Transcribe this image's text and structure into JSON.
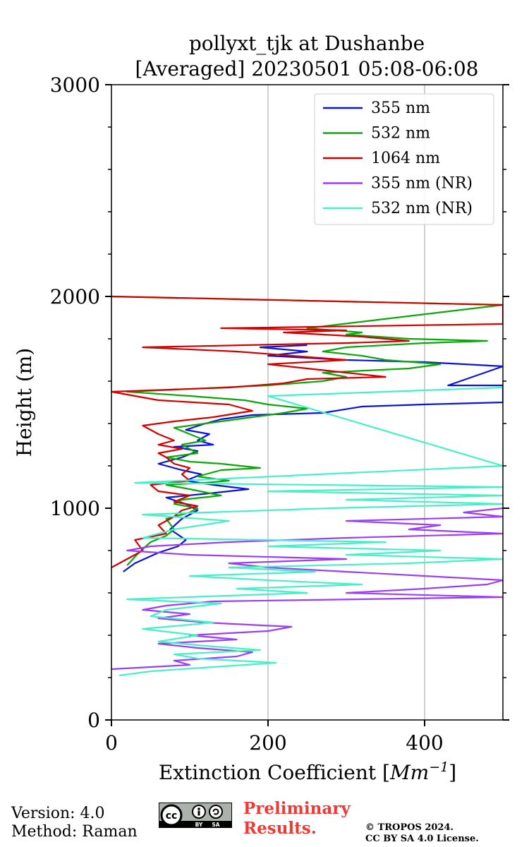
{
  "chart_data": {
    "type": "line",
    "title": "pollyxt_tjk at Dushanbe",
    "subtitle": "[Averaged] 20230501 05:08-06:08",
    "xlabel": "Extinction Coefficient [",
    "xlabel_unit": "Mm",
    "xlabel_exp": "−1",
    "xlabel_end": "]",
    "ylabel": "Height (m)",
    "xlim": [
      0,
      500
    ],
    "ylim": [
      0,
      3000
    ],
    "x_ticks": [
      0,
      200,
      400
    ],
    "y_ticks": [
      0,
      1000,
      2000,
      3000
    ],
    "x_tick_labels": [
      "0",
      "200",
      "400"
    ],
    "y_tick_labels": [
      "0",
      "1000",
      "2000",
      "3000"
    ],
    "grid": "vertical",
    "legend_position": "top-right",
    "series": [
      {
        "name": "355 nm",
        "color": "#0a14d6",
        "points": [
          [
            15,
            700
          ],
          [
            30,
            740
          ],
          [
            60,
            790
          ],
          [
            85,
            820
          ],
          [
            95,
            850
          ],
          [
            75,
            900
          ],
          [
            90,
            950
          ],
          [
            110,
            990
          ],
          [
            95,
            1020
          ],
          [
            70,
            1050
          ],
          [
            125,
            1070
          ],
          [
            175,
            1090
          ],
          [
            130,
            1110
          ],
          [
            95,
            1130
          ],
          [
            115,
            1160
          ],
          [
            90,
            1180
          ],
          [
            60,
            1210
          ],
          [
            90,
            1240
          ],
          [
            110,
            1270
          ],
          [
            80,
            1290
          ],
          [
            130,
            1300
          ],
          [
            110,
            1320
          ],
          [
            125,
            1350
          ],
          [
            95,
            1370
          ],
          [
            120,
            1400
          ],
          [
            140,
            1420
          ],
          [
            180,
            1440
          ],
          [
            270,
            1450
          ],
          [
            320,
            1480
          ],
          [
            400,
            1490
          ],
          [
            500,
            1500
          ],
          [
            500,
            1580
          ],
          [
            430,
            1580
          ],
          [
            500,
            1670
          ],
          [
            400,
            1690
          ],
          [
            300,
            1700
          ],
          [
            200,
            1720
          ],
          [
            250,
            1740
          ],
          [
            190,
            1760
          ],
          [
            250,
            1770
          ]
        ]
      },
      {
        "name": "532 nm",
        "color": "#0aa80a",
        "points": [
          [
            20,
            730
          ],
          [
            35,
            790
          ],
          [
            50,
            840
          ],
          [
            70,
            870
          ],
          [
            80,
            900
          ],
          [
            70,
            950
          ],
          [
            100,
            980
          ],
          [
            110,
            1000
          ],
          [
            80,
            1020
          ],
          [
            90,
            1040
          ],
          [
            140,
            1060
          ],
          [
            100,
            1090
          ],
          [
            70,
            1110
          ],
          [
            120,
            1120
          ],
          [
            150,
            1130
          ],
          [
            110,
            1150
          ],
          [
            140,
            1180
          ],
          [
            190,
            1190
          ],
          [
            140,
            1210
          ],
          [
            100,
            1220
          ],
          [
            70,
            1240
          ],
          [
            110,
            1260
          ],
          [
            90,
            1300
          ],
          [
            120,
            1320
          ],
          [
            100,
            1350
          ],
          [
            80,
            1380
          ],
          [
            120,
            1400
          ],
          [
            180,
            1430
          ],
          [
            220,
            1450
          ],
          [
            250,
            1470
          ],
          [
            200,
            1490
          ],
          [
            170,
            1510
          ],
          [
            100,
            1530
          ],
          [
            20,
            1550
          ],
          [
            200,
            1580
          ],
          [
            270,
            1600
          ],
          [
            300,
            1620
          ],
          [
            270,
            1640
          ],
          [
            380,
            1660
          ],
          [
            420,
            1680
          ],
          [
            350,
            1700
          ],
          [
            320,
            1720
          ],
          [
            270,
            1740
          ],
          [
            300,
            1760
          ],
          [
            400,
            1780
          ],
          [
            480,
            1790
          ],
          [
            380,
            1800
          ],
          [
            300,
            1820
          ],
          [
            320,
            1830
          ],
          [
            250,
            1850
          ],
          [
            500,
            1960
          ],
          [
            0,
            2000
          ]
        ]
      },
      {
        "name": "1064 nm",
        "color": "#d40000",
        "points": [
          [
            0,
            720
          ],
          [
            20,
            760
          ],
          [
            40,
            800
          ],
          [
            30,
            850
          ],
          [
            70,
            880
          ],
          [
            60,
            920
          ],
          [
            80,
            960
          ],
          [
            90,
            990
          ],
          [
            110,
            1010
          ],
          [
            80,
            1030
          ],
          [
            100,
            1060
          ],
          [
            60,
            1080
          ],
          [
            50,
            1110
          ],
          [
            100,
            1130
          ],
          [
            90,
            1160
          ],
          [
            100,
            1190
          ],
          [
            80,
            1210
          ],
          [
            70,
            1240
          ],
          [
            60,
            1260
          ],
          [
            90,
            1280
          ],
          [
            60,
            1300
          ],
          [
            80,
            1320
          ],
          [
            60,
            1350
          ],
          [
            40,
            1390
          ],
          [
            80,
            1410
          ],
          [
            130,
            1430
          ],
          [
            180,
            1460
          ],
          [
            150,
            1490
          ],
          [
            60,
            1510
          ],
          [
            30,
            1530
          ],
          [
            0,
            1550
          ],
          [
            150,
            1570
          ],
          [
            220,
            1590
          ],
          [
            250,
            1610
          ],
          [
            350,
            1620
          ],
          [
            300,
            1640
          ],
          [
            250,
            1660
          ],
          [
            200,
            1680
          ],
          [
            300,
            1700
          ],
          [
            230,
            1720
          ],
          [
            160,
            1740
          ],
          [
            40,
            1760
          ],
          [
            300,
            1780
          ],
          [
            380,
            1790
          ],
          [
            320,
            1810
          ],
          [
            220,
            1830
          ],
          [
            300,
            1840
          ],
          [
            140,
            1850
          ],
          [
            500,
            1870
          ],
          [
            500,
            1960
          ],
          [
            0,
            2000
          ]
        ]
      },
      {
        "name": "355 nm (NR)",
        "color": "#9a3ff2",
        "points": [
          [
            0,
            240
          ],
          [
            100,
            260
          ],
          [
            80,
            280
          ],
          [
            160,
            300
          ],
          [
            180,
            320
          ],
          [
            110,
            340
          ],
          [
            60,
            360
          ],
          [
            160,
            380
          ],
          [
            100,
            400
          ],
          [
            200,
            420
          ],
          [
            230,
            440
          ],
          [
            120,
            460
          ],
          [
            60,
            480
          ],
          [
            100,
            500
          ],
          [
            40,
            520
          ],
          [
            70,
            540
          ],
          [
            130,
            560
          ],
          [
            500,
            580
          ],
          [
            300,
            600
          ],
          [
            400,
            620
          ],
          [
            480,
            640
          ],
          [
            500,
            660
          ],
          [
            400,
            680
          ],
          [
            300,
            700
          ],
          [
            200,
            720
          ],
          [
            150,
            740
          ],
          [
            300,
            760
          ],
          [
            100,
            780
          ],
          [
            20,
            800
          ],
          [
            50,
            820
          ],
          [
            150,
            840
          ],
          [
            300,
            860
          ],
          [
            500,
            880
          ],
          [
            380,
            900
          ],
          [
            420,
            920
          ],
          [
            300,
            940
          ],
          [
            500,
            960
          ],
          [
            450,
            980
          ],
          [
            500,
            1000
          ]
        ]
      },
      {
        "name": "532 nm (NR)",
        "color": "#45f0c8",
        "points": [
          [
            10,
            210
          ],
          [
            50,
            230
          ],
          [
            130,
            250
          ],
          [
            210,
            270
          ],
          [
            110,
            290
          ],
          [
            80,
            310
          ],
          [
            190,
            330
          ],
          [
            120,
            350
          ],
          [
            60,
            370
          ],
          [
            110,
            400
          ],
          [
            40,
            430
          ],
          [
            130,
            460
          ],
          [
            50,
            490
          ],
          [
            70,
            520
          ],
          [
            140,
            550
          ],
          [
            20,
            570
          ],
          [
            250,
            600
          ],
          [
            160,
            620
          ],
          [
            320,
            640
          ],
          [
            200,
            660
          ],
          [
            100,
            680
          ],
          [
            260,
            700
          ],
          [
            150,
            720
          ],
          [
            380,
            740
          ],
          [
            500,
            760
          ],
          [
            300,
            780
          ],
          [
            420,
            800
          ],
          [
            200,
            820
          ],
          [
            350,
            840
          ],
          [
            40,
            860
          ],
          [
            80,
            900
          ],
          [
            150,
            940
          ],
          [
            40,
            970
          ],
          [
            280,
            1000
          ],
          [
            500,
            1020
          ],
          [
            300,
            1040
          ],
          [
            500,
            1060
          ],
          [
            200,
            1080
          ],
          [
            500,
            1100
          ],
          [
            30,
            1120
          ],
          [
            500,
            1200
          ],
          [
            200,
            1530
          ],
          [
            500,
            1570
          ]
        ]
      }
    ]
  },
  "footer": {
    "version": "Version: 4.0",
    "method": "Method: Raman",
    "preliminary_line1": "Preliminary",
    "preliminary_line2": "Results.",
    "copyright_line1": "© TROPOS 2024.",
    "copyright_line2": "CC BY SA 4.0 License.",
    "license_badge": "cc-by-sa-badge"
  }
}
